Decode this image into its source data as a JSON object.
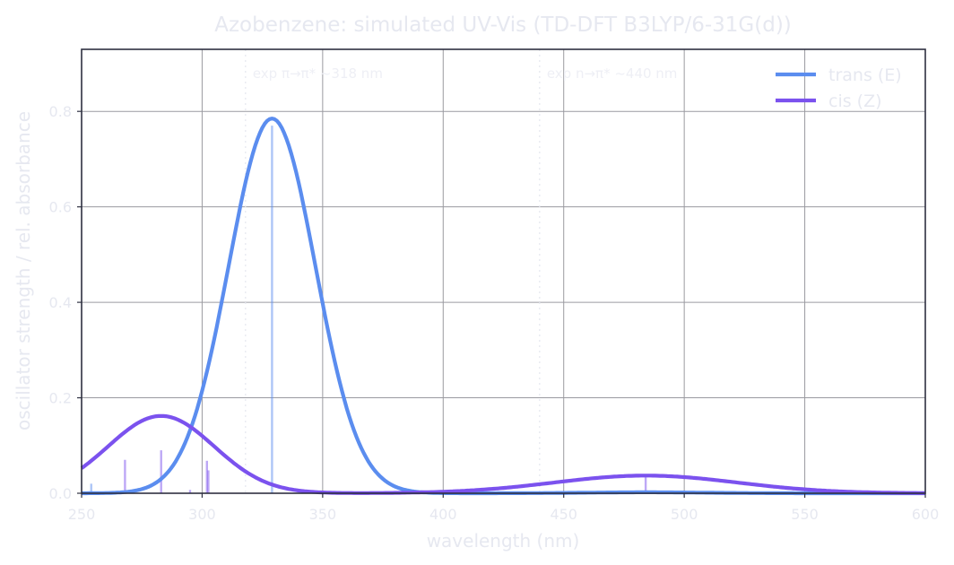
{
  "chart_data": {
    "type": "line",
    "title": "Azobenzene: simulated UV-Vis (TD-DFT B3LYP/6-31G(d))",
    "xlabel": "wavelength  (nm)",
    "ylabel": "oscillator strength  /  rel. absorbance",
    "xlim": [
      250,
      600
    ],
    "ylim": [
      0,
      0.93
    ],
    "xticks": [
      250,
      300,
      350,
      400,
      450,
      500,
      550,
      600
    ],
    "yticks": [
      0.0,
      0.2,
      0.4,
      0.6,
      0.8
    ],
    "xtick_labels": [
      "250",
      "300",
      "350",
      "400",
      "450",
      "500",
      "550",
      "600"
    ],
    "ytick_labels": [
      "0.0",
      "0.2",
      "0.4",
      "0.6",
      "0.8"
    ],
    "grid": true,
    "legend": "top-right",
    "series": [
      {
        "name": "trans (E)",
        "color": "#5b8def",
        "bands": [
          {
            "center": 329,
            "amp": 0.785,
            "sigma": 18
          },
          {
            "center": 484,
            "amp": 0.002,
            "sigma": 25
          }
        ],
        "sticks": [
          {
            "x": 254,
            "f": 0.02
          },
          {
            "x": 329,
            "f": 0.77
          },
          {
            "x": 484,
            "f": 0.003
          }
        ]
      },
      {
        "name": "cis (Z)",
        "color": "#7b52ee",
        "bands": [
          {
            "center": 283,
            "amp": 0.162,
            "sigma": 22
          },
          {
            "center": 484,
            "amp": 0.037,
            "sigma": 38
          }
        ],
        "sticks": [
          {
            "x": 268,
            "f": 0.07
          },
          {
            "x": 283,
            "f": 0.09
          },
          {
            "x": 295,
            "f": 0.007
          },
          {
            "x": 302,
            "f": 0.068
          },
          {
            "x": 302.6,
            "f": 0.048
          },
          {
            "x": 484,
            "f": 0.038
          }
        ]
      }
    ],
    "annotations": [
      {
        "x": 318,
        "text": "exp π→π* ~318 nm"
      },
      {
        "x": 440,
        "text": "exp n→π* ~440 nm"
      }
    ]
  }
}
